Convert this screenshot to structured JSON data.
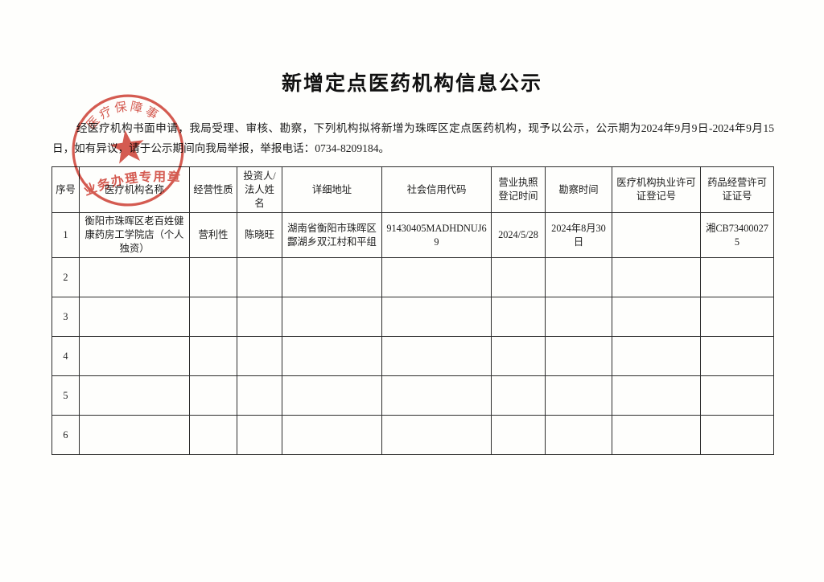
{
  "page": {
    "title": "新增定点医药机构信息公示",
    "intro": "经医疗机构书面申请，我局受理、审核、勘察，下列机构拟将新增为珠晖区定点医药机构，现予以公示，公示期为2024年9月9日-2024年9月15日，如有异议，请于公示期间向我局举报，举报电话：0734-8209184。"
  },
  "stamp": {
    "arc_text": "医疗保障事",
    "bottom_text": "业务办理专用章",
    "color": "#cc372c"
  },
  "table": {
    "headers": [
      "序号",
      "医疗机构名称",
      "经营性质",
      "投资人/法人姓名",
      "详细地址",
      "社会信用代码",
      "营业执照登记时间",
      "勘察时间",
      "医疗机构执业许可证登记号",
      "药品经营许可证证号"
    ],
    "rows": [
      [
        "1",
        "衡阳市珠晖区老百姓健康药房工学院店（个人独资）",
        "营利性",
        "陈晓旺",
        "湖南省衡阳市珠晖区酃湖乡双江村和平组",
        "91430405MADHDNUJ69",
        "2024/5/28",
        "2024年8月30日",
        "",
        "湘CB734000275"
      ],
      [
        "2",
        "",
        "",
        "",
        "",
        "",
        "",
        "",
        "",
        ""
      ],
      [
        "3",
        "",
        "",
        "",
        "",
        "",
        "",
        "",
        "",
        ""
      ],
      [
        "4",
        "",
        "",
        "",
        "",
        "",
        "",
        "",
        "",
        ""
      ],
      [
        "5",
        "",
        "",
        "",
        "",
        "",
        "",
        "",
        "",
        ""
      ],
      [
        "6",
        "",
        "",
        "",
        "",
        "",
        "",
        "",
        "",
        ""
      ]
    ]
  }
}
